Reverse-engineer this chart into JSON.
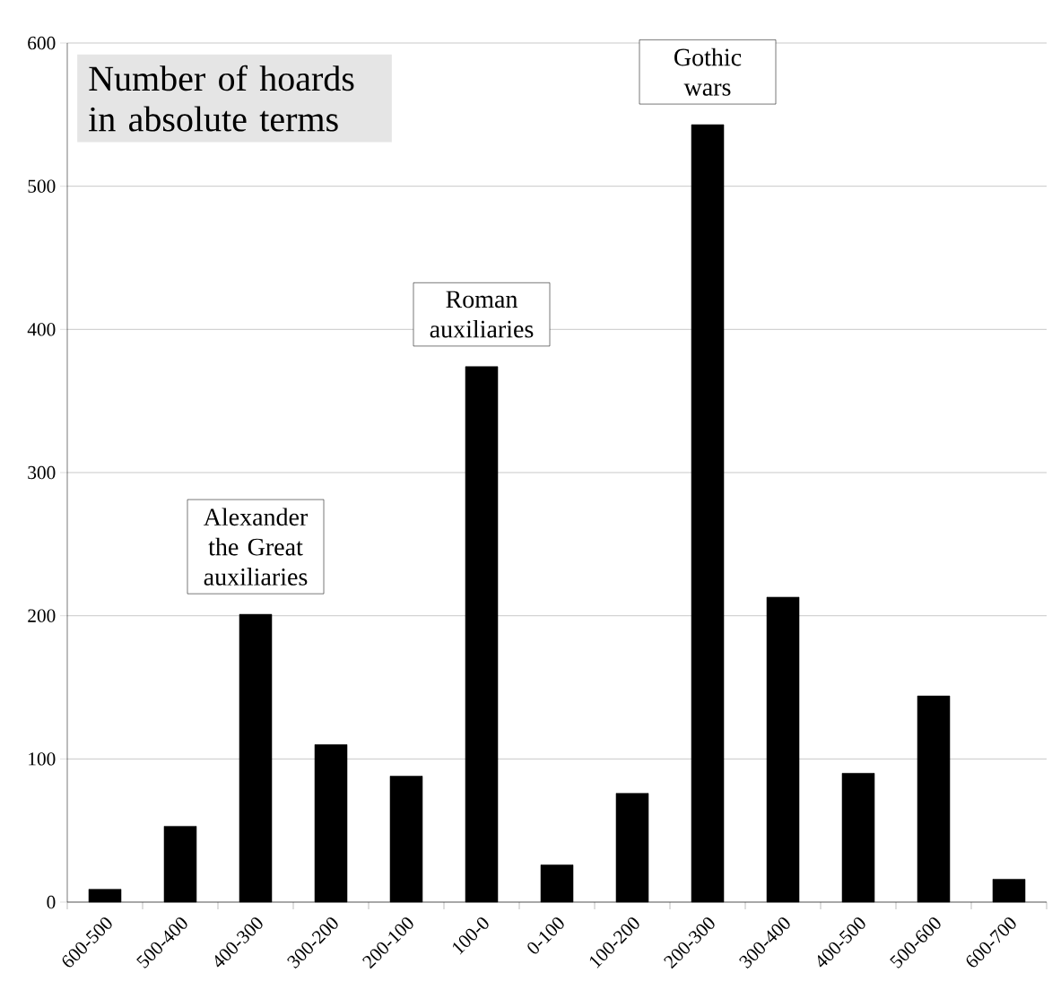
{
  "chart_data": {
    "type": "bar",
    "title": "Number of hoards in absolute terms",
    "categories": [
      "600-500",
      "500-400",
      "400-300",
      "300-200",
      "200-100",
      "100-0",
      "0-100",
      "100-200",
      "200-300",
      "300-400",
      "400-500",
      "500-600",
      "600-700"
    ],
    "values": [
      9,
      53,
      201,
      110,
      88,
      374,
      26,
      76,
      543,
      213,
      90,
      144,
      16
    ],
    "color": "#000000",
    "ylim": [
      0,
      600
    ],
    "yticks": [
      0,
      100,
      200,
      300,
      400,
      500,
      600
    ],
    "grid": "y",
    "annotations": [
      {
        "text": "Alexander the Great auxiliaries",
        "x": "400-300",
        "y": 201
      },
      {
        "text": "Roman auxiliaries",
        "x": "100-0",
        "y": 374
      },
      {
        "text": "Gothic wars",
        "x": "200-300",
        "y": 543
      }
    ]
  }
}
